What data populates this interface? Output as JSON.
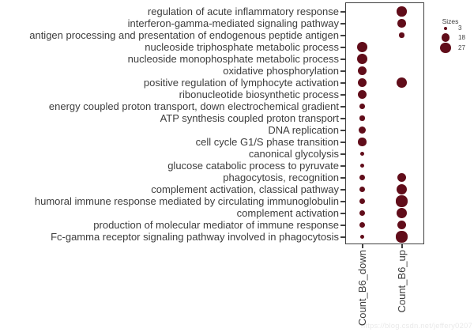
{
  "watermark": "https://blog.csdn.net/jeffery0207",
  "colors": {
    "dot": "#610d1a",
    "axis": "#404040",
    "label_text": "#3d3d3d",
    "watermark": "#eaeaea"
  },
  "chart_data": {
    "type": "scatter",
    "subtype": "bubble-dotplot",
    "columns": [
      "Count_B6_down",
      "Count_B6_up"
    ],
    "legend": {
      "title": "Sizes",
      "values": [
        3,
        18,
        27
      ],
      "position": "right-top"
    },
    "grid": false,
    "size_scale_note": "dot diameter proportional to sqrt(count)",
    "rows": [
      {
        "term": "regulation of acute inflammatory response",
        "down": null,
        "up": 24
      },
      {
        "term": "interferon-gamma-mediated signaling pathway",
        "down": null,
        "up": 17
      },
      {
        "term": "antigen processing and presentation of endogenous peptide antigen",
        "down": null,
        "up": 6
      },
      {
        "term": "nucleoside triphosphate metabolic process",
        "down": 30,
        "up": null
      },
      {
        "term": "nucleoside monophosphate metabolic process",
        "down": 29,
        "up": null
      },
      {
        "term": "oxidative phosphorylation",
        "down": 21,
        "up": null
      },
      {
        "term": "positive regulation of lymphocyte activation",
        "down": 21,
        "up": 26
      },
      {
        "term": "ribonucleotide biosynthetic process",
        "down": 19,
        "up": null
      },
      {
        "term": "energy coupled proton transport, down electrochemical gradient",
        "down": 7,
        "up": null
      },
      {
        "term": "ATP synthesis coupled proton transport",
        "down": 6,
        "up": null
      },
      {
        "term": "DNA replication",
        "down": 14,
        "up": null
      },
      {
        "term": "cell cycle G1/S phase transition",
        "down": 16,
        "up": null
      },
      {
        "term": "canonical glycolysis",
        "down": 4,
        "up": null
      },
      {
        "term": "glucose catabolic process to pyruvate",
        "down": 5,
        "up": null
      },
      {
        "term": "phagocytosis, recognition",
        "down": 8,
        "up": 20
      },
      {
        "term": "complement activation, classical pathway",
        "down": 10,
        "up": 28
      },
      {
        "term": "humoral immune response mediated by circulating immunoglobulin",
        "down": 8,
        "up": 31
      },
      {
        "term": "complement activation",
        "down": 8,
        "up": 28
      },
      {
        "term": "production of molecular mediator of immune response",
        "down": 8,
        "up": 20
      },
      {
        "term": "Fc-gamma receptor signaling pathway involved in phagocytosis",
        "down": 4,
        "up": 31
      }
    ]
  }
}
